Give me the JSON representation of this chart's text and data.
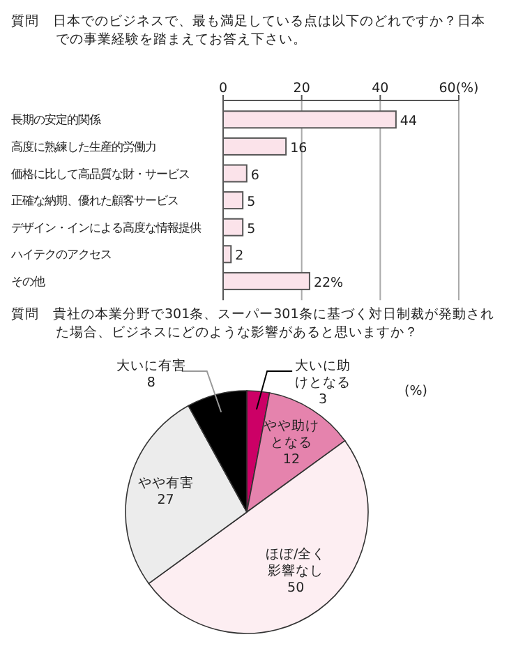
{
  "chart_data": [
    {
      "type": "bar",
      "orientation": "horizontal",
      "title": "質問　日本でのビジネスで、最も満足している点は以下のどれですか？日本での事業経験を踏まえてお答え下さい。",
      "categories": [
        "長期の安定的関係",
        "高度に熟練した生産的労働力",
        "価格に比して高品質な財・サービス",
        "正確な納期、優れた顧客サービス",
        "デザイン・インによる高度な情報提供",
        "ハイテクのアクセス",
        "その他"
      ],
      "values": [
        44,
        16,
        6,
        5,
        5,
        2,
        22
      ],
      "value_labels": [
        "44",
        "16",
        "6",
        "5",
        "5",
        "2",
        "22%"
      ],
      "color": "#fbe3ea",
      "xlim": [
        0,
        60
      ],
      "xticks": [
        0,
        20,
        40,
        {
          "value": 60,
          "label": "60(%)"
        }
      ],
      "grid": "x"
    },
    {
      "type": "pie",
      "title": "質問　貴社の本業分野で301条、スーパー301条に基づく対日制裁が発動された場合、ビジネスにどのような影響があると思いますか？",
      "categories": [
        "大いに助けとなる",
        "やや助けとなる",
        "ほぼ/全く影響なし",
        "やや有害",
        "大いに有害"
      ],
      "values": [
        3,
        12,
        50,
        27,
        8
      ],
      "colors": [
        "#cc0066",
        "#e583ad",
        "#fdeef2",
        "#ececec",
        "#000000"
      ],
      "data_labels": true,
      "annotations": [
        "(%)"
      ]
    }
  ]
}
